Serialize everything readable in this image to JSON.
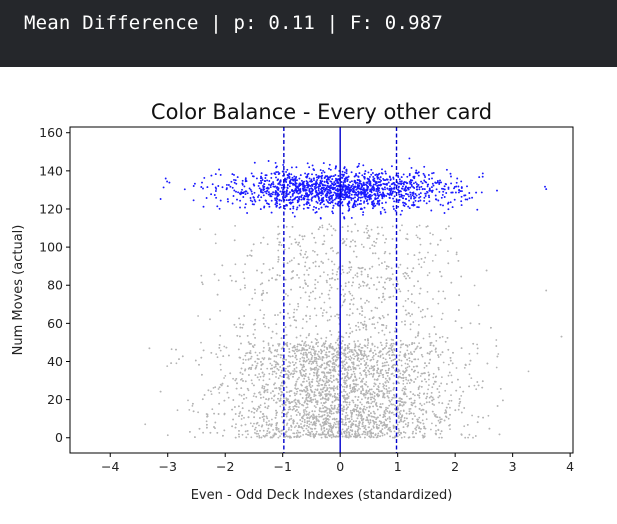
{
  "header": {
    "text": "Mean Difference | p: 0.11 | F: 0.987"
  },
  "colors": {
    "header_bg": "#25272b",
    "header_fg": "#ffffff",
    "gray_points": "#b4b4b4",
    "blue_points": "#1a1aff",
    "lines": "#0000cc"
  },
  "chart_data": {
    "type": "scatter",
    "title": "Color Balance - Every other card",
    "xlabel": "Even - Odd Deck Indexes (standardized)",
    "ylabel": "Num Moves (actual)",
    "xlim": [
      -4.7,
      4.05
    ],
    "ylim": [
      -8,
      163
    ],
    "xticks": [
      -4,
      -3,
      -2,
      -1,
      0,
      1,
      2,
      3,
      4
    ],
    "yticks": [
      0,
      20,
      40,
      60,
      80,
      100,
      120,
      140,
      160
    ],
    "grid": false,
    "series": [
      {
        "color": "#b4b4b4",
        "approx_points": 5000,
        "x_mean": 0.0,
        "x_sd": 1.0,
        "y_range": [
          0,
          112
        ],
        "y_mode": 35
      },
      {
        "color": "#1a1aff",
        "approx_points": 1600,
        "x_mean": 0.0,
        "x_sd": 1.0,
        "y_mean": 130,
        "y_sd": 5,
        "y_range": [
          115,
          151
        ]
      }
    ],
    "vlines": [
      {
        "x": 0.0,
        "style": "solid",
        "color": "#0000cc"
      },
      {
        "x": -0.98,
        "style": "dashed",
        "color": "#0000cc"
      },
      {
        "x": 0.98,
        "style": "dashed",
        "color": "#0000cc"
      }
    ]
  }
}
